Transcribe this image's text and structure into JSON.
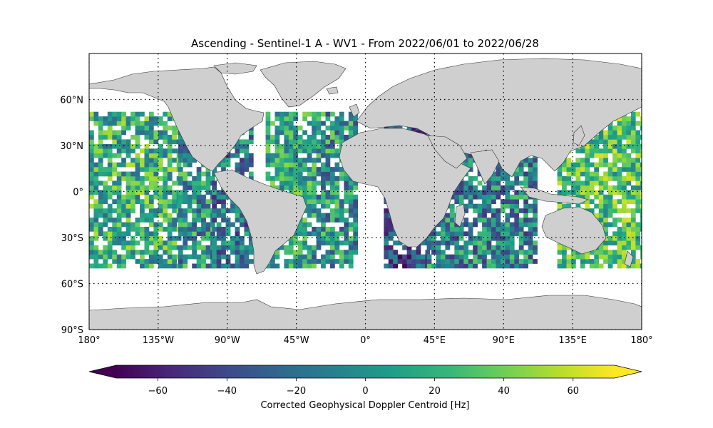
{
  "title": "Ascending - Sentinel-1 A - WV1 - From 2022/06/01 to 2022/06/28",
  "map": {
    "projection": "PlateCarree",
    "lon_range": [
      -180,
      180
    ],
    "lat_range": [
      -90,
      90
    ],
    "gridlines": "dotted",
    "land_color": "#cfcfcf",
    "ocean_color": "#ffffff",
    "lon_ticks": [
      {
        "value": -180,
        "label": "180°"
      },
      {
        "value": -135,
        "label": "135°W"
      },
      {
        "value": -90,
        "label": "90°W"
      },
      {
        "value": -45,
        "label": "45°W"
      },
      {
        "value": 0,
        "label": "0°"
      },
      {
        "value": 45,
        "label": "45°E"
      },
      {
        "value": 90,
        "label": "90°E"
      },
      {
        "value": 135,
        "label": "135°E"
      },
      {
        "value": 180,
        "label": "180°"
      }
    ],
    "lat_ticks": [
      {
        "value": 60,
        "label": "60°N"
      },
      {
        "value": 30,
        "label": "30°N"
      },
      {
        "value": 0,
        "label": "0°"
      },
      {
        "value": -30,
        "label": "30°S"
      },
      {
        "value": -60,
        "label": "60°S"
      },
      {
        "value": -90,
        "label": "90°S"
      }
    ],
    "data_lat_range": [
      -50,
      50
    ]
  },
  "colorbar": {
    "label": "Corrected Geophysical Doppler Centroid [Hz]",
    "colormap": "viridis",
    "range": [
      -72,
      72
    ],
    "extend": "both",
    "ticks": [
      {
        "value": -60,
        "label": "−60"
      },
      {
        "value": -40,
        "label": "−40"
      },
      {
        "value": -20,
        "label": "−20"
      },
      {
        "value": 0,
        "label": "0"
      },
      {
        "value": 20,
        "label": "20"
      },
      {
        "value": 40,
        "label": "40"
      },
      {
        "value": 60,
        "label": "60"
      }
    ],
    "colors": [
      "#440154",
      "#482878",
      "#3e4989",
      "#31688e",
      "#26828e",
      "#1f9e89",
      "#35b779",
      "#6ece58",
      "#b5de2b",
      "#fde725"
    ]
  }
}
